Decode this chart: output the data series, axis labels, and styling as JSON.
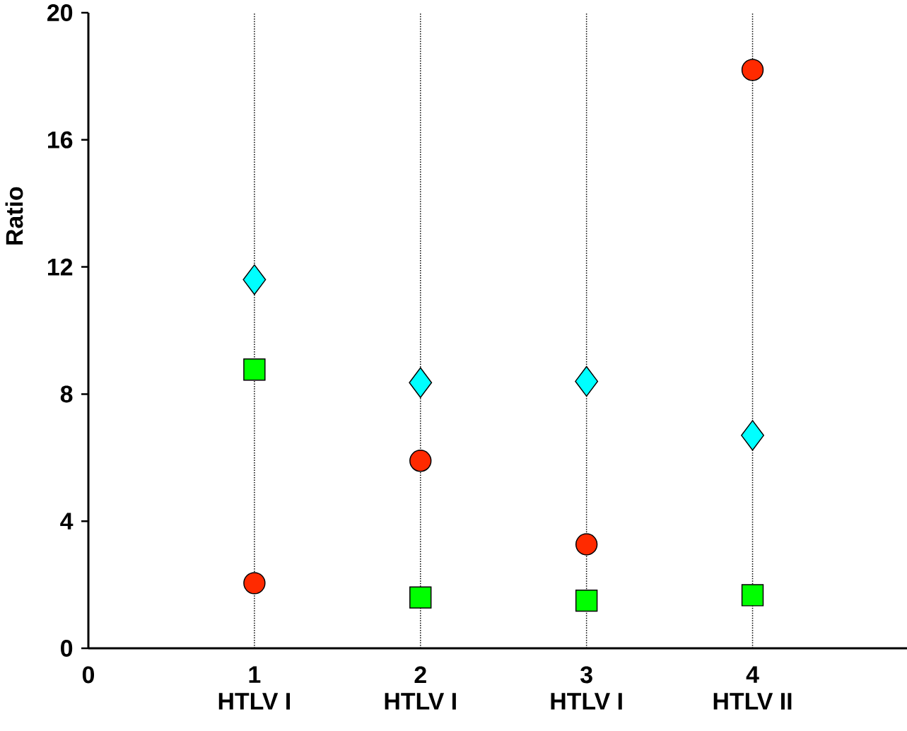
{
  "chart_data": {
    "type": "scatter",
    "ylabel": "Ratio",
    "x": [
      1,
      2,
      3,
      4
    ],
    "series": [
      {
        "color": "#ff2a00",
        "marker": "circle",
        "values": [
          2.05,
          5.9,
          3.27,
          18.2
        ]
      },
      {
        "color": "#00ffff",
        "marker": "diamond",
        "values": [
          11.6,
          8.36,
          8.4,
          6.7
        ]
      },
      {
        "color": "#00ff00",
        "marker": "square",
        "values": [
          8.77,
          1.6,
          1.5,
          1.67
        ]
      }
    ],
    "xlim": [
      0,
      4.93
    ],
    "xticks": [
      0,
      1,
      2,
      3,
      4
    ],
    "ylim": [
      0,
      20
    ],
    "yticks": [
      0,
      4,
      8,
      12,
      16,
      20
    ],
    "ref_lines": [
      {
        "axis": "x",
        "value": 1,
        "line_style": "dotted",
        "color": "#000000"
      },
      {
        "axis": "x",
        "value": 2,
        "line_style": "dotted",
        "color": "#000000"
      },
      {
        "axis": "x",
        "value": 3,
        "line_style": "dotted",
        "color": "#000000"
      },
      {
        "axis": "x",
        "value": 4,
        "line_style": "dotted",
        "color": "#000000"
      }
    ],
    "annotations": [
      "HTLV  I",
      "HTLV  I",
      "HTLV  I",
      "HTLV II"
    ]
  }
}
